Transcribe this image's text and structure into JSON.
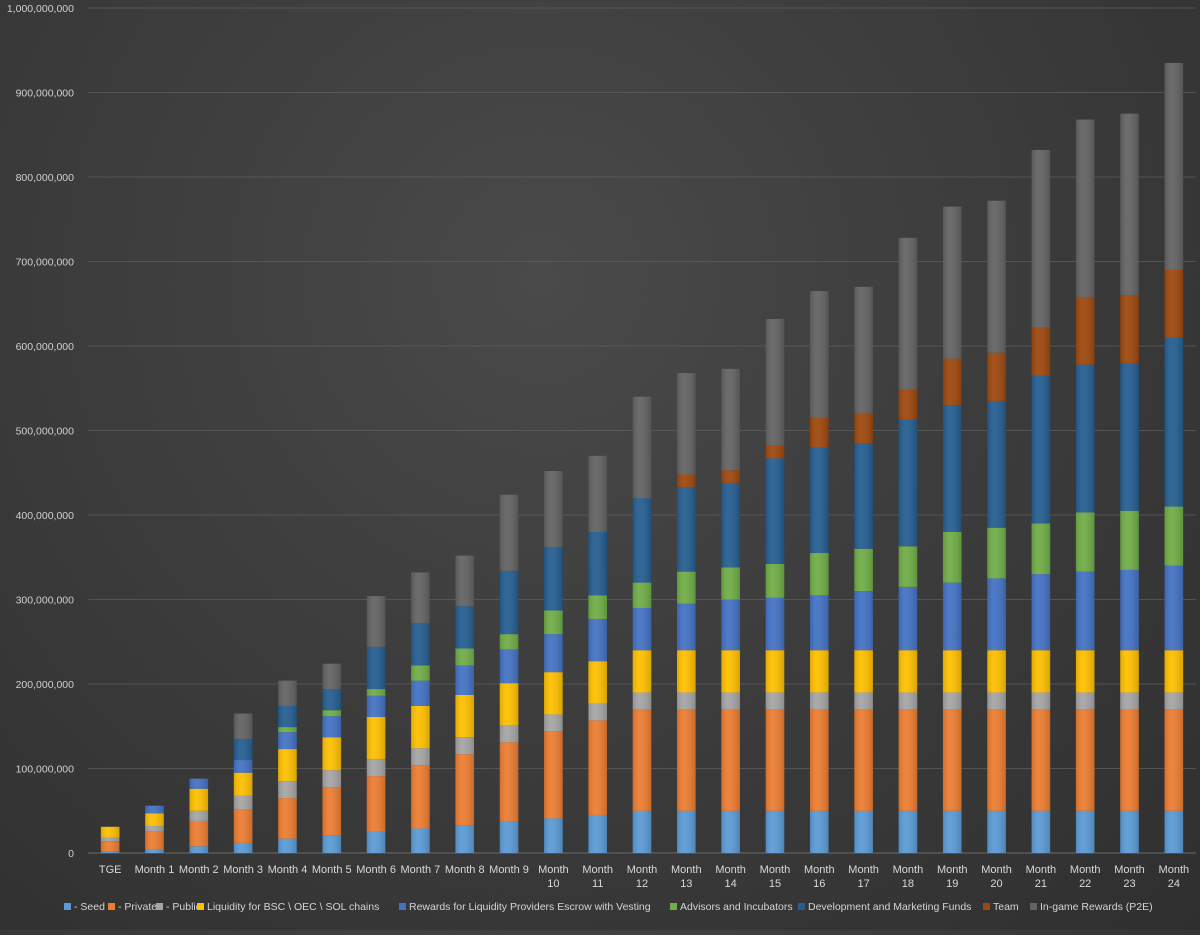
{
  "chart_data": {
    "type": "bar",
    "stacked": true,
    "title": "",
    "xlabel": "",
    "ylabel": "",
    "ylim": [
      0,
      1000000000
    ],
    "yticks": [
      0,
      100000000,
      200000000,
      300000000,
      400000000,
      500000000,
      600000000,
      700000000,
      800000000,
      900000000,
      1000000000
    ],
    "ytick_labels": [
      "0",
      "100,000,000",
      "200,000,000",
      "300,000,000",
      "400,000,000",
      "500,000,000",
      "600,000,000",
      "700,000,000",
      "800,000,000",
      "900,000,000",
      "1,000,000,000"
    ],
    "grid": true,
    "legend_position": "bottom",
    "categories": [
      "TGE",
      "Month 1",
      "Month 2",
      "Month 3",
      "Month 4",
      "Month 5",
      "Month 6",
      "Month 7",
      "Month 8",
      "Month 9",
      "Month 10",
      "Month 11",
      "Month 12",
      "Month 13",
      "Month 14",
      "Month 15",
      "Month 16",
      "Month 17",
      "Month 18",
      "Month 19",
      "Month 20",
      "Month 21",
      "Month 22",
      "Month 23",
      "Month 24"
    ],
    "category_lines": [
      [
        "TGE"
      ],
      [
        "Month 1"
      ],
      [
        "Month 2"
      ],
      [
        "Month 3"
      ],
      [
        "Month 4"
      ],
      [
        "Month 5"
      ],
      [
        "Month 6"
      ],
      [
        "Month 7"
      ],
      [
        "Month 8"
      ],
      [
        "Month 9"
      ],
      [
        "Month",
        "10"
      ],
      [
        "Month",
        "11"
      ],
      [
        "Month",
        "12"
      ],
      [
        "Month",
        "13"
      ],
      [
        "Month",
        "14"
      ],
      [
        "Month",
        "15"
      ],
      [
        "Month",
        "16"
      ],
      [
        "Month",
        "17"
      ],
      [
        "Month",
        "18"
      ],
      [
        "Month",
        "19"
      ],
      [
        "Month",
        "20"
      ],
      [
        "Month",
        "21"
      ],
      [
        "Month",
        "22"
      ],
      [
        "Month",
        "23"
      ],
      [
        "Month",
        "24"
      ]
    ],
    "series": [
      {
        "name": "- Seed",
        "color": "#5b9bd5",
        "values": [
          2000000,
          4000000,
          8000000,
          12000000,
          17000000,
          21000000,
          25000000,
          29000000,
          33000000,
          37000000,
          41000000,
          45000000,
          50000000,
          50000000,
          50000000,
          50000000,
          50000000,
          50000000,
          50000000,
          50000000,
          50000000,
          50000000,
          50000000,
          50000000,
          50000000
        ]
      },
      {
        "name": "- Private",
        "color": "#ed7d31",
        "values": [
          12000000,
          22000000,
          30000000,
          40000000,
          48000000,
          57000000,
          66000000,
          75000000,
          84000000,
          94000000,
          103000000,
          112000000,
          120000000,
          120000000,
          120000000,
          120000000,
          120000000,
          120000000,
          120000000,
          120000000,
          120000000,
          120000000,
          120000000,
          120000000,
          120000000
        ]
      },
      {
        "name": "- Public",
        "color": "#a5a5a5",
        "values": [
          4000000,
          6000000,
          12000000,
          16000000,
          20000000,
          20000000,
          20000000,
          20000000,
          20000000,
          20000000,
          20000000,
          20000000,
          20000000,
          20000000,
          20000000,
          20000000,
          20000000,
          20000000,
          20000000,
          20000000,
          20000000,
          20000000,
          20000000,
          20000000,
          20000000
        ]
      },
      {
        "name": "Liquidity for BSC \\ OEC \\ SOL chains",
        "color": "#ffc000",
        "values": [
          13000000,
          15000000,
          26000000,
          27000000,
          38000000,
          39000000,
          50000000,
          50000000,
          50000000,
          50000000,
          50000000,
          50000000,
          50000000,
          50000000,
          50000000,
          50000000,
          50000000,
          50000000,
          50000000,
          50000000,
          50000000,
          50000000,
          50000000,
          50000000,
          50000000
        ]
      },
      {
        "name": "Rewards for Liquidity Providers Escrow with Vesting",
        "color": "#4472c4",
        "values": [
          0,
          9000000,
          12000000,
          15000000,
          20000000,
          25000000,
          25000000,
          30000000,
          35000000,
          40000000,
          45000000,
          50000000,
          50000000,
          55000000,
          60000000,
          62000000,
          65000000,
          70000000,
          75000000,
          80000000,
          85000000,
          90000000,
          93000000,
          95000000,
          100000000
        ]
      },
      {
        "name": "Advisors and Incubators",
        "color": "#70ad47",
        "values": [
          0,
          0,
          0,
          0,
          6000000,
          7000000,
          8000000,
          18000000,
          20000000,
          18000000,
          28000000,
          28000000,
          30000000,
          38000000,
          38000000,
          40000000,
          50000000,
          50000000,
          48000000,
          60000000,
          60000000,
          60000000,
          70000000,
          70000000,
          70000000
        ]
      },
      {
        "name": "Development and Marketing Funds",
        "color": "#255e91",
        "values": [
          0,
          0,
          0,
          25000000,
          25000000,
          25000000,
          50000000,
          50000000,
          50000000,
          75000000,
          75000000,
          75000000,
          100000000,
          100000000,
          100000000,
          125000000,
          125000000,
          125000000,
          150000000,
          150000000,
          150000000,
          175000000,
          175000000,
          175000000,
          200000000
        ]
      },
      {
        "name": "Team",
        "color": "#9e480e",
        "values": [
          0,
          0,
          0,
          0,
          0,
          0,
          0,
          0,
          0,
          0,
          0,
          0,
          0,
          15000000,
          15000000,
          15000000,
          35000000,
          35000000,
          35000000,
          55000000,
          57000000,
          57000000,
          80000000,
          80000000,
          80000000
        ]
      },
      {
        "name": "In-game Rewards (P2E)",
        "color": "#636363",
        "values": [
          0,
          0,
          0,
          30000000,
          30000000,
          30000000,
          60000000,
          60000000,
          60000000,
          90000000,
          90000000,
          90000000,
          120000000,
          120000000,
          120000000,
          150000000,
          150000000,
          150000000,
          180000000,
          180000000,
          180000000,
          210000000,
          210000000,
          215000000,
          245000000
        ]
      }
    ]
  }
}
